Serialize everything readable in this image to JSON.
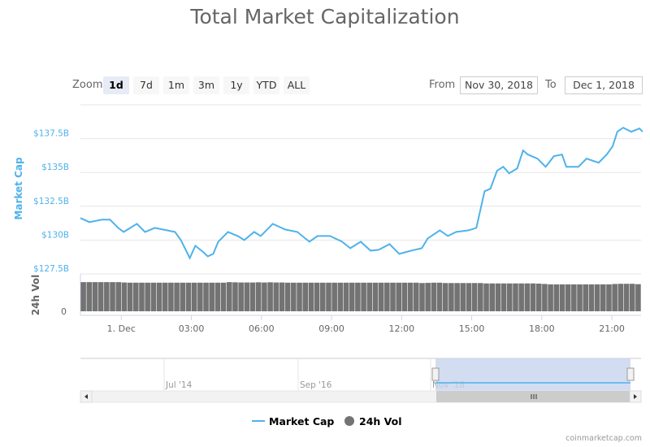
{
  "chart_data": {
    "type": "line",
    "title": "Total Market Capitalization",
    "range_selector": {
      "label": "Zoom",
      "buttons": [
        "1d",
        "7d",
        "1m",
        "3m",
        "1y",
        "YTD",
        "ALL"
      ],
      "selected": "1d"
    },
    "date_range": {
      "from_label": "From",
      "from": "Nov 30, 2018",
      "to_label": "To",
      "to": "Dec 1, 2018"
    },
    "y_axis": {
      "label": "Market Cap",
      "ticks": [
        "$127.5B",
        "$130B",
        "$132.5B",
        "$135B",
        "$137.5B"
      ],
      "tick_values": [
        127.5,
        130,
        132.5,
        135,
        137.5
      ],
      "range": [
        127.5,
        140
      ],
      "unit": "B USD",
      "color": "#4fb2ea"
    },
    "volume_axis": {
      "label": "24h Vol",
      "ticks": [
        "0"
      ]
    },
    "x_axis": {
      "ticks": [
        "1. Dec",
        "03:00",
        "06:00",
        "09:00",
        "12:00",
        "15:00",
        "18:00",
        "21:00"
      ],
      "tick_times": [
        "00:00",
        "03:00",
        "06:00",
        "09:00",
        "12:00",
        "15:00",
        "18:00",
        "21:00"
      ],
      "range": [
        "Nov 30 22:15",
        "Dec 1 22:19"
      ]
    },
    "grid": true,
    "series": [
      {
        "name": "Market Cap",
        "color": "#4fb2ea",
        "type": "line",
        "times": [
          "Nov 30 22:15",
          "Nov 30 22:38",
          "Nov 30 23:10",
          "Nov 30 23:31",
          "Nov 30 23:52",
          "00:06",
          "00:40",
          "01:01",
          "01:26",
          "01:57",
          "02:18",
          "02:33",
          "02:56",
          "03:10",
          "03:31",
          "03:42",
          "03:56",
          "04:09",
          "04:34",
          "04:59",
          "05:16",
          "05:41",
          "05:58",
          "06:29",
          "07:01",
          "07:32",
          "08:03",
          "08:24",
          "08:56",
          "09:27",
          "09:48",
          "10:15",
          "10:40",
          "11:01",
          "11:29",
          "11:54",
          "12:25",
          "12:52",
          "13:07",
          "13:38",
          "13:59",
          "14:20",
          "14:52",
          "15:12",
          "15:33",
          "15:48",
          "16:05",
          "16:21",
          "16:36",
          "16:57",
          "17:12",
          "17:24",
          "17:49",
          "18:10",
          "18:31",
          "18:52",
          "19:03",
          "19:34",
          "19:55",
          "20:26",
          "20:47",
          "21:02",
          "21:14",
          "21:29",
          "21:50",
          "22:11",
          "22:19"
        ],
        "values": [
          131.63,
          131.33,
          131.51,
          131.51,
          130.9,
          130.6,
          131.2,
          130.6,
          130.9,
          130.72,
          130.6,
          130.0,
          128.67,
          129.58,
          129.1,
          128.8,
          128.98,
          129.88,
          130.6,
          130.3,
          130.0,
          130.6,
          130.3,
          131.2,
          130.78,
          130.6,
          129.88,
          130.3,
          130.3,
          129.88,
          129.4,
          129.88,
          129.22,
          129.28,
          129.7,
          128.98,
          129.22,
          129.4,
          130.12,
          130.72,
          130.3,
          130.6,
          130.72,
          130.9,
          133.61,
          133.8,
          135.12,
          135.42,
          134.94,
          135.3,
          136.63,
          136.33,
          136.02,
          135.42,
          136.2,
          136.33,
          135.42,
          135.42,
          136.02,
          135.72,
          136.33,
          136.93,
          138.01,
          138.31,
          138.01,
          138.25,
          138.01
        ]
      },
      {
        "name": "24h Vol",
        "color": "#737373",
        "type": "column",
        "range": [
          0,
          20
        ],
        "values": [
          15.6,
          15.6,
          15.6,
          15.6,
          15.6,
          15.6,
          15.6,
          15.4,
          15.3,
          15.3,
          15.3,
          15.3,
          15.3,
          15.3,
          15.3,
          15.3,
          15.3,
          15.3,
          15.3,
          15.3,
          15.3,
          15.3,
          15.3,
          15.3,
          15.3,
          15.6,
          15.5,
          15.4,
          15.4,
          15.4,
          15.5,
          15.4,
          15.5,
          15.4,
          15.4,
          15.3,
          15.3,
          15.3,
          15.3,
          15.3,
          15.3,
          15.3,
          15.3,
          15.3,
          15.3,
          15.3,
          15.3,
          15.3,
          15.3,
          15.3,
          15.3,
          15.3,
          15.3,
          15.3,
          15.3,
          15.3,
          15.3,
          15.3,
          15.1,
          15.2,
          15.3,
          15.3,
          15.1,
          15.1,
          15.1,
          15.1,
          15.1,
          15.1,
          15.1,
          14.9,
          14.9,
          14.9,
          14.9,
          14.9,
          14.9,
          14.9,
          14.9,
          14.9,
          14.8,
          14.6,
          14.4,
          14.4,
          14.4,
          14.4,
          14.4,
          14.4,
          14.4,
          14.4,
          14.4,
          14.4,
          14.4,
          14.6,
          14.7,
          14.7,
          14.7,
          14.5
        ]
      }
    ],
    "navigator": {
      "ticks": [
        "Jul '14",
        "Sep '16",
        "Nov '18"
      ],
      "selected_range": "Nov 30 2018 - Dec 1 2018"
    },
    "legend": {
      "placement": "bottom",
      "items": [
        "Market Cap",
        "24h Vol"
      ]
    },
    "credit": "coinmarketcap.com"
  }
}
